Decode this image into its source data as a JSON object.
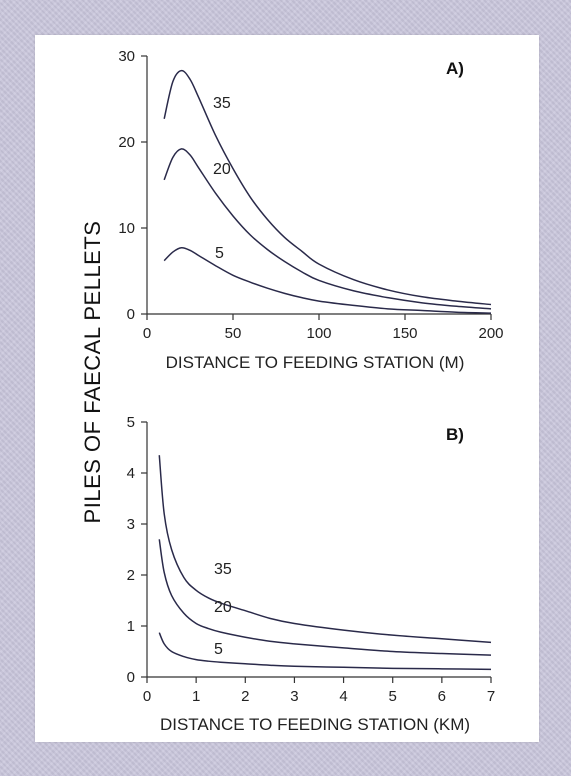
{
  "ylabel": "PILES OF FAECAL PELLETS",
  "chart_data": [
    {
      "type": "line",
      "panel_label": "A)",
      "xlabel": "DISTANCE TO FEEDING STATION (M)",
      "xlim": [
        0,
        200
      ],
      "ylim": [
        0,
        30
      ],
      "xticks": [
        0,
        50,
        100,
        150,
        200
      ],
      "yticks": [
        0,
        10,
        20,
        30
      ],
      "x": [
        10,
        15,
        20,
        25,
        30,
        40,
        50,
        60,
        70,
        80,
        90,
        100,
        120,
        140,
        160,
        180,
        200
      ],
      "series": [
        {
          "name": "35",
          "values": [
            22.7,
            27.0,
            28.3,
            27.3,
            25.2,
            20.7,
            16.9,
            13.6,
            11.0,
            8.9,
            7.3,
            5.8,
            4.0,
            2.8,
            2.0,
            1.5,
            1.1
          ]
        },
        {
          "name": "20",
          "values": [
            15.6,
            18.2,
            19.2,
            18.5,
            17.0,
            14.0,
            11.4,
            9.2,
            7.5,
            6.1,
            4.9,
            3.9,
            2.7,
            1.9,
            1.3,
            0.9,
            0.6
          ]
        },
        {
          "name": "5",
          "values": [
            6.2,
            7.2,
            7.7,
            7.4,
            6.8,
            5.6,
            4.5,
            3.7,
            3.0,
            2.4,
            1.9,
            1.5,
            1.0,
            0.6,
            0.4,
            0.2,
            0.1
          ]
        }
      ]
    },
    {
      "type": "line",
      "panel_label": "B)",
      "xlabel": "DISTANCE TO FEEDING STATION (KM)",
      "xlim": [
        0,
        7
      ],
      "ylim": [
        0,
        5
      ],
      "xticks": [
        0,
        1,
        2,
        3,
        4,
        5,
        6,
        7
      ],
      "yticks": [
        0,
        1,
        2,
        3,
        4,
        5
      ],
      "x": [
        0.25,
        0.35,
        0.5,
        0.75,
        1.0,
        1.25,
        1.5,
        2.0,
        2.5,
        3.0,
        4.0,
        5.0,
        6.0,
        7.0
      ],
      "series": [
        {
          "name": "35",
          "values": [
            4.35,
            3.2,
            2.5,
            1.95,
            1.7,
            1.55,
            1.45,
            1.3,
            1.15,
            1.05,
            0.92,
            0.82,
            0.75,
            0.68
          ]
        },
        {
          "name": "20",
          "values": [
            2.7,
            2.05,
            1.6,
            1.25,
            1.05,
            0.95,
            0.88,
            0.78,
            0.7,
            0.65,
            0.57,
            0.5,
            0.46,
            0.43
          ]
        },
        {
          "name": "5",
          "values": [
            0.87,
            0.65,
            0.5,
            0.4,
            0.34,
            0.31,
            0.29,
            0.26,
            0.23,
            0.21,
            0.19,
            0.17,
            0.16,
            0.15
          ]
        }
      ]
    }
  ]
}
